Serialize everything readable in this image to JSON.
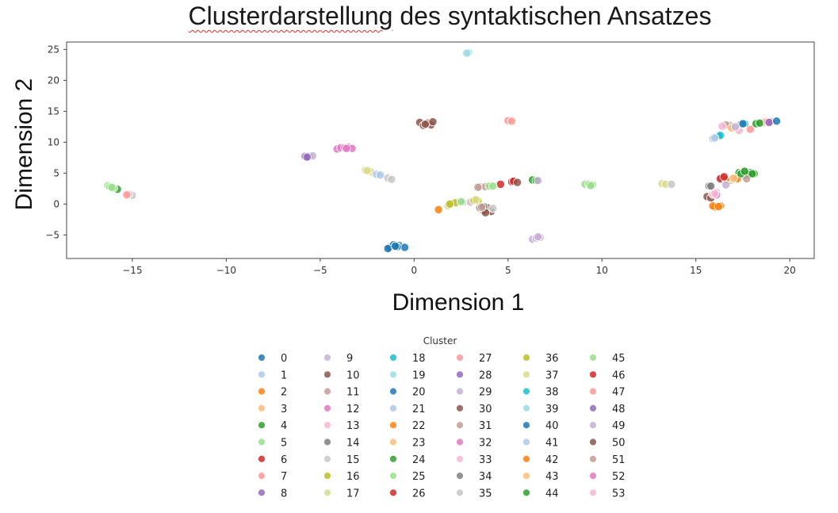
{
  "chart_data": {
    "type": "scatter",
    "title": "Clusterdarstellung des syntaktischen Ansatzes",
    "title_words": [
      "Clusterdarstellung",
      "des syntaktischen Ansatzes"
    ],
    "xlabel": "Dimension 1",
    "ylabel": "Dimension 2",
    "xlim": [
      -18.5,
      21.3
    ],
    "ylim": [
      -8.8,
      26.2
    ],
    "xticks": [
      -15,
      -10,
      -5,
      0,
      5,
      10,
      15,
      20
    ],
    "yticks": [
      -5,
      0,
      5,
      10,
      15,
      20,
      25
    ],
    "grid": false,
    "legend": {
      "title": "Cluster",
      "placement": "below",
      "columns": 6
    },
    "colors": {
      "0": "#1f77b4",
      "1": "#aec7e8",
      "2": "#ff7f0e",
      "3": "#ffbb78",
      "4": "#2ca02c",
      "5": "#98df8a",
      "6": "#d62728",
      "7": "#ff9896",
      "8": "#9467bd",
      "9": "#c5b0d5",
      "10": "#8c564b",
      "11": "#c49c94",
      "12": "#e377c2",
      "13": "#f7b6d2",
      "14": "#7f7f7f",
      "15": "#c7c7c7",
      "16": "#bcbd22",
      "17": "#dbdb8d",
      "18": "#17becf",
      "19": "#9edae5"
    },
    "series": [
      {
        "name": "0",
        "points": [
          [
            -1.3,
            -7.0
          ],
          [
            -1.1,
            -6.6
          ],
          [
            -0.8,
            -6.7
          ],
          [
            -0.5,
            -7.0
          ],
          [
            -1.4,
            -7.2
          ],
          [
            -0.9,
            -6.9
          ]
        ]
      },
      {
        "name": "1",
        "points": [
          [
            15.9,
            10.6
          ],
          [
            16.1,
            10.8
          ]
        ]
      },
      {
        "name": "2",
        "points": [
          [
            1.3,
            -0.9
          ],
          [
            16.3,
            -0.3
          ],
          [
            16.0,
            -0.5
          ],
          [
            15.9,
            -0.3
          ],
          [
            16.8,
            3.8
          ],
          [
            17.0,
            4.0
          ]
        ]
      },
      {
        "name": "3",
        "points": [
          [
            17.1,
            4.1
          ],
          [
            17.3,
            4.3
          ]
        ]
      },
      {
        "name": "4",
        "points": [
          [
            -15.8,
            2.4
          ],
          [
            6.3,
            3.9
          ],
          [
            6.5,
            3.8
          ],
          [
            17.3,
            5.1
          ],
          [
            17.5,
            5.2
          ],
          [
            17.7,
            5.0
          ],
          [
            17.9,
            5.1
          ],
          [
            18.1,
            4.9
          ],
          [
            17.6,
            4.7
          ],
          [
            17.8,
            4.8
          ]
        ]
      },
      {
        "name": "5",
        "points": [
          [
            -16.3,
            3.0
          ],
          [
            -16.2,
            2.8
          ],
          [
            -16.0,
            2.6
          ],
          [
            9.1,
            3.2
          ],
          [
            9.3,
            3.2
          ],
          [
            9.5,
            3.1
          ]
        ]
      },
      {
        "name": "6",
        "points": [
          [
            4.6,
            3.2
          ],
          [
            16.4,
            4.3
          ],
          [
            16.3,
            4.1
          ]
        ]
      },
      {
        "name": "7",
        "points": [
          [
            5.0,
            13.5
          ],
          [
            5.2,
            13.4
          ],
          [
            18.6,
            13.2
          ],
          [
            17.9,
            12.1
          ]
        ]
      },
      {
        "name": "8",
        "points": [
          [
            -5.8,
            7.7
          ],
          [
            -5.6,
            7.7
          ]
        ]
      },
      {
        "name": "9",
        "points": [
          [
            -5.4,
            7.8
          ],
          [
            6.3,
            -5.7
          ],
          [
            6.5,
            -5.5
          ],
          [
            6.7,
            -5.4
          ]
        ]
      },
      {
        "name": "10",
        "points": [
          [
            0.3,
            13.2
          ],
          [
            0.5,
            12.7
          ],
          [
            0.7,
            13.1
          ],
          [
            0.9,
            12.8
          ],
          [
            1.0,
            13.3
          ],
          [
            3.7,
            -1.1
          ],
          [
            4.1,
            -1.2
          ],
          [
            3.9,
            -0.6
          ],
          [
            15.6,
            1.2
          ],
          [
            15.8,
            1.0
          ]
        ]
      },
      {
        "name": "11",
        "points": [
          [
            3.5,
            2.8
          ],
          [
            3.8,
            2.8
          ],
          [
            16.8,
            12.7
          ],
          [
            16.6,
            12.8
          ],
          [
            17.7,
            4.1
          ]
        ]
      },
      {
        "name": "12",
        "points": [
          [
            -4.1,
            8.9
          ],
          [
            -3.9,
            9.1
          ],
          [
            -3.7,
            9.1
          ],
          [
            -3.5,
            9.2
          ]
        ]
      },
      {
        "name": "13",
        "points": [
          [
            15.9,
            1.6
          ],
          [
            16.1,
            1.9
          ],
          [
            17.3,
            11.9
          ]
        ]
      },
      {
        "name": "14",
        "points": [
          [
            3.5,
            -0.6
          ],
          [
            3.7,
            -0.4
          ],
          [
            15.7,
            2.9
          ]
        ]
      },
      {
        "name": "15",
        "points": [
          [
            -15.0,
            1.4
          ],
          [
            -1.4,
            4.2
          ],
          [
            -1.2,
            4.0
          ],
          [
            2.6,
            0.3
          ],
          [
            4.2,
            -0.7
          ]
        ]
      },
      {
        "name": "16",
        "points": [
          [
            2.0,
            0.1
          ],
          [
            2.2,
            0.2
          ],
          [
            3.4,
            0.5
          ]
        ]
      },
      {
        "name": "17",
        "points": [
          [
            -2.6,
            5.5
          ],
          [
            -2.3,
            5.2
          ],
          [
            1.8,
            -0.3
          ],
          [
            13.2,
            3.3
          ],
          [
            13.4,
            3.2
          ]
        ]
      },
      {
        "name": "18",
        "points": [
          [
            16.2,
            11.0
          ],
          [
            17.4,
            12.9
          ],
          [
            17.6,
            13.0
          ]
        ]
      },
      {
        "name": "19",
        "points": [
          [
            2.9,
            24.5
          ]
        ]
      },
      {
        "name": "20",
        "points": [
          [
            17.5,
            13.0
          ],
          [
            19.0,
            13.4
          ]
        ]
      },
      {
        "name": "21",
        "points": [
          [
            -2.0,
            4.8
          ],
          [
            -1.8,
            4.7
          ]
        ]
      },
      {
        "name": "22",
        "points": [
          [
            16.6,
            4.0
          ]
        ]
      },
      {
        "name": "23",
        "points": [
          [
            16.9,
            12.3
          ]
        ]
      },
      {
        "name": "24",
        "points": [
          [
            18.2,
            13.0
          ],
          [
            18.4,
            13.1
          ],
          [
            18.0,
            4.9
          ]
        ]
      },
      {
        "name": "25",
        "points": [
          [
            2.5,
            0.4
          ],
          [
            4.0,
            2.9
          ],
          [
            4.2,
            2.9
          ]
        ]
      },
      {
        "name": "26",
        "points": [
          [
            5.2,
            3.6
          ],
          [
            5.3,
            3.7
          ]
        ]
      },
      {
        "name": "27",
        "points": [
          [
            18.8,
            13.3
          ],
          [
            19.0,
            13.3
          ]
        ]
      },
      {
        "name": "28",
        "points": [
          [
            18.9,
            13.2
          ]
        ]
      },
      {
        "name": "29",
        "points": [
          [
            16.6,
            3.1
          ],
          [
            17.1,
            12.5
          ]
        ]
      },
      {
        "name": "30",
        "points": [
          [
            5.5,
            3.5
          ],
          [
            3.8,
            -1.4
          ]
        ]
      },
      {
        "name": "31",
        "points": [
          [
            3.6,
            -0.5
          ]
        ]
      },
      {
        "name": "32",
        "points": [
          [
            -3.3,
            9.0
          ],
          [
            16.1,
            1.5
          ]
        ]
      },
      {
        "name": "33",
        "points": [
          [
            -15.2,
            1.6
          ]
        ]
      },
      {
        "name": "34",
        "points": [
          [
            15.8,
            2.9
          ]
        ]
      },
      {
        "name": "35",
        "points": [
          [
            3.0,
            0.3
          ],
          [
            13.7,
            3.2
          ]
        ]
      },
      {
        "name": "36",
        "points": [
          [
            3.2,
            0.6
          ],
          [
            1.9,
            0.0
          ]
        ]
      },
      {
        "name": "37",
        "points": [
          [
            -2.5,
            5.4
          ],
          [
            3.3,
            0.7
          ]
        ]
      },
      {
        "name": "38",
        "points": [
          [
            16.3,
            11.1
          ]
        ]
      },
      {
        "name": "39",
        "points": [
          [
            2.8,
            24.4
          ]
        ]
      },
      {
        "name": "40",
        "points": [
          [
            -1.0,
            -6.8
          ],
          [
            19.3,
            13.4
          ]
        ]
      },
      {
        "name": "41",
        "points": [
          [
            16.0,
            10.7
          ]
        ]
      },
      {
        "name": "42",
        "points": [
          [
            16.2,
            -0.4
          ],
          [
            17.2,
            4.1
          ]
        ]
      },
      {
        "name": "43",
        "points": [
          [
            17.0,
            4.2
          ]
        ]
      },
      {
        "name": "44",
        "points": [
          [
            17.4,
            4.9
          ],
          [
            17.6,
            5.3
          ]
        ]
      },
      {
        "name": "45",
        "points": [
          [
            -16.1,
            2.7
          ],
          [
            9.4,
            3.0
          ]
        ]
      },
      {
        "name": "46",
        "points": [
          [
            16.5,
            4.4
          ]
        ]
      },
      {
        "name": "47",
        "points": [
          [
            -15.3,
            1.5
          ]
        ]
      },
      {
        "name": "48",
        "points": [
          [
            -5.7,
            7.6
          ]
        ]
      },
      {
        "name": "49",
        "points": [
          [
            6.6,
            -5.3
          ],
          [
            6.6,
            3.8
          ]
        ]
      },
      {
        "name": "50",
        "points": [
          [
            0.6,
            12.9
          ]
        ]
      },
      {
        "name": "51",
        "points": [
          [
            3.4,
            2.7
          ]
        ]
      },
      {
        "name": "52",
        "points": [
          [
            -3.6,
            9.0
          ]
        ]
      },
      {
        "name": "53",
        "points": [
          [
            16.4,
            12.6
          ],
          [
            16.0,
            1.7
          ]
        ]
      }
    ]
  }
}
